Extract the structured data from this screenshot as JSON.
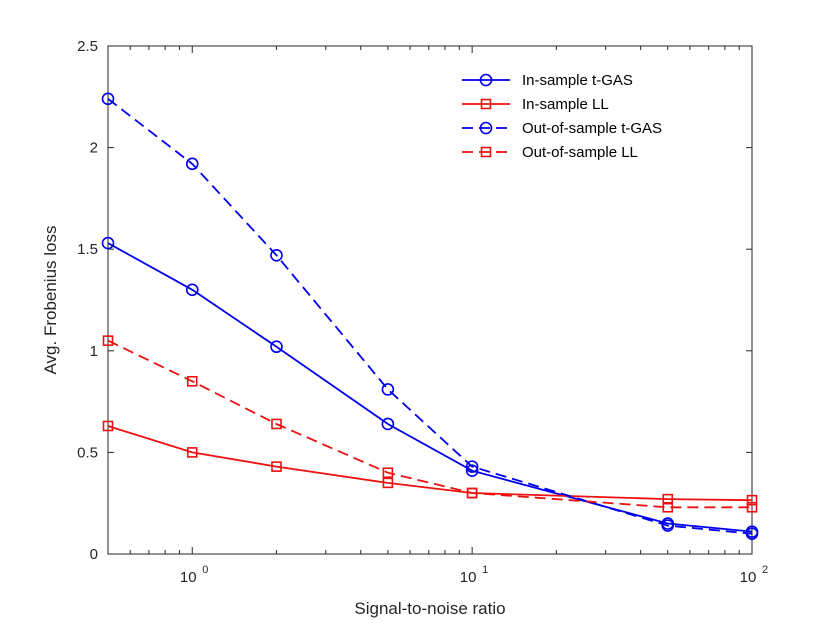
{
  "chart_data": {
    "type": "line",
    "title": "",
    "xlabel": "Signal-to-noise ratio",
    "ylabel": "Avg. Frobenius loss",
    "xscale": "log",
    "xlim": [
      0.5,
      100
    ],
    "ylim": [
      0,
      2.5
    ],
    "yticks": [
      "0",
      "0.5",
      "1",
      "1.5",
      "2",
      "2.5"
    ],
    "xticks": [
      {
        "value": 1,
        "base": "10",
        "exp": "0"
      },
      {
        "value": 10,
        "base": "10",
        "exp": "1"
      },
      {
        "value": 100,
        "base": "10",
        "exp": "2"
      }
    ],
    "x": [
      0.5,
      1,
      2,
      5,
      10,
      50,
      100
    ],
    "legend_position": "top-right",
    "grid": false,
    "series": [
      {
        "name": "In-sample t-GAS",
        "color": "#0000ee",
        "style": "solid",
        "marker": "circle",
        "values": [
          1.53,
          1.3,
          1.02,
          0.64,
          0.41,
          0.15,
          0.11
        ]
      },
      {
        "name": "In-sample LL",
        "color": "#ee1111",
        "style": "solid",
        "marker": "square",
        "values": [
          0.63,
          0.5,
          0.43,
          0.35,
          0.3,
          0.27,
          0.265
        ]
      },
      {
        "name": "Out-of-sample t-GAS",
        "color": "#0000ee",
        "style": "dashed",
        "marker": "circle",
        "values": [
          2.24,
          1.92,
          1.47,
          0.81,
          0.43,
          0.14,
          0.1
        ]
      },
      {
        "name": "Out-of-sample LL",
        "color": "#ee1111",
        "style": "dashed",
        "marker": "square",
        "values": [
          1.05,
          0.85,
          0.64,
          0.4,
          0.3,
          0.23,
          0.23
        ]
      }
    ]
  }
}
